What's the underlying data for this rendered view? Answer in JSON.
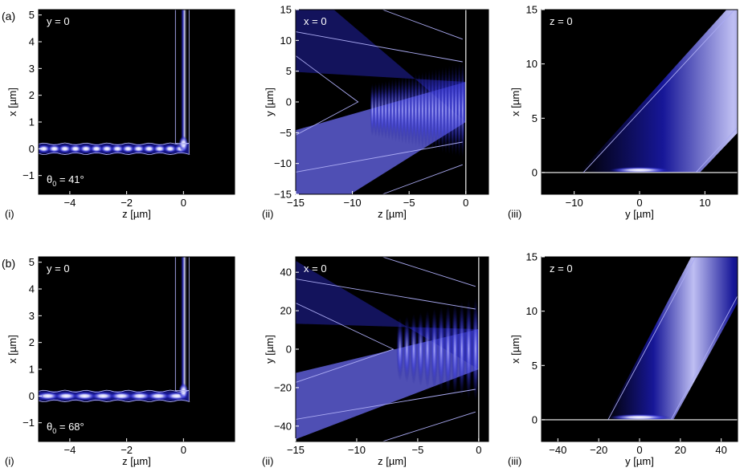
{
  "row_labels": [
    "(a)",
    "(b)"
  ],
  "colors": {
    "background": "#000000",
    "intensity_low": "#000000",
    "intensity_mid": "#2a2cd8",
    "intensity_high": "#f2f2ff",
    "contour": "#aaaaf2",
    "interface_line": "#d0d0d0"
  },
  "colormap": "black-blue-white",
  "chart_data": [
    {
      "type": "heatmap",
      "row": "(a)",
      "panel_label": "(i)",
      "title": "y = 0",
      "annotation": "θ0 = 41°",
      "annotation_base": "θ",
      "annotation_sub": "0",
      "annotation_rest": " = 41°",
      "xlabel": "z [µm]",
      "ylabel": "x [µm]",
      "xlim": [
        -5.1,
        1.8
      ],
      "ylim": [
        -1.7,
        5.2
      ],
      "xticks": [
        -4,
        -2,
        0
      ],
      "yticks": [
        -1,
        0,
        1,
        2,
        3,
        4,
        5
      ],
      "tick_labels": {
        "x": [
          "−4",
          "−2",
          "0"
        ],
        "y": [
          "−1",
          "0",
          "1",
          "2",
          "3",
          "4",
          "5"
        ]
      },
      "features": {
        "waveguide_z": [
          -5.1,
          0.2
        ],
        "waveguide_x": 0,
        "vertical_guide_z": 0,
        "vertical_guide_x": [
          0,
          5.2
        ],
        "peaks": 14
      }
    },
    {
      "type": "heatmap",
      "row": "(a)",
      "panel_label": "(ii)",
      "title": "x = 0",
      "xlabel": "z [µm]",
      "ylabel": "y [µm]",
      "xlim": [
        -15,
        2
      ],
      "ylim": [
        -15,
        15
      ],
      "xticks": [
        -15,
        -10,
        -5,
        0
      ],
      "yticks": [
        -15,
        -10,
        -5,
        0,
        5,
        10,
        15
      ],
      "tick_labels": {
        "x": [
          "−15",
          "−10",
          "−5",
          "0"
        ],
        "y": [
          "−15",
          "−10",
          "−5",
          "0",
          "5",
          "10",
          "15"
        ]
      },
      "features": {
        "interface_z": 0,
        "beam_angle_deg": 41,
        "fringes": 28
      }
    },
    {
      "type": "heatmap",
      "row": "(a)",
      "panel_label": "(iii)",
      "title": "z = 0",
      "xlabel": "y [µm]",
      "ylabel": "x [µm]",
      "xlim": [
        -15,
        15
      ],
      "ylim": [
        -2,
        15
      ],
      "xticks": [
        -10,
        0,
        10
      ],
      "yticks": [
        0,
        5,
        10,
        15
      ],
      "tick_labels": {
        "x": [
          "−10",
          "0",
          "10"
        ],
        "y": [
          "0",
          "5",
          "10",
          "15"
        ]
      },
      "features": {
        "interface_x": 0,
        "beam_angle_deg": 41
      }
    },
    {
      "type": "heatmap",
      "row": "(b)",
      "panel_label": "(i)",
      "title": "y = 0",
      "annotation": "θ0 = 68°",
      "annotation_base": "θ",
      "annotation_sub": "0",
      "annotation_rest": " = 68°",
      "xlabel": "z [µm]",
      "ylabel": "x [µm]",
      "xlim": [
        -5.1,
        1.8
      ],
      "ylim": [
        -1.7,
        5.2
      ],
      "xticks": [
        -4,
        -2,
        0
      ],
      "yticks": [
        -1,
        0,
        1,
        2,
        3,
        4,
        5
      ],
      "tick_labels": {
        "x": [
          "−4",
          "−2",
          "0"
        ],
        "y": [
          "−1",
          "0",
          "1",
          "2",
          "3",
          "4",
          "5"
        ]
      },
      "features": {
        "waveguide_z": [
          -5.1,
          0.2
        ],
        "waveguide_x": 0,
        "vertical_guide_z": 0,
        "vertical_guide_x": [
          0,
          5.2
        ],
        "peaks": 8
      }
    },
    {
      "type": "heatmap",
      "row": "(b)",
      "panel_label": "(ii)",
      "title": "x = 0",
      "xlabel": "z [µm]",
      "ylabel": "y [µm]",
      "xlim": [
        -15,
        0.8
      ],
      "ylim": [
        -48,
        48
      ],
      "xticks": [
        -15,
        -10,
        -5,
        0
      ],
      "yticks": [
        -40,
        -20,
        0,
        20,
        40
      ],
      "tick_labels": {
        "x": [
          "−15",
          "−10",
          "−5",
          "0"
        ],
        "y": [
          "−40",
          "−20",
          "0",
          "20",
          "40"
        ]
      },
      "features": {
        "interface_z": 0,
        "beam_angle_deg": 68,
        "fringes": 12
      }
    },
    {
      "type": "heatmap",
      "row": "(b)",
      "panel_label": "(iii)",
      "title": "z = 0",
      "xlabel": "y [µm]",
      "ylabel": "x [µm]",
      "xlim": [
        -48,
        48
      ],
      "ylim": [
        -2,
        15
      ],
      "xticks": [
        -40,
        -20,
        0,
        20,
        40
      ],
      "yticks": [
        0,
        5,
        10,
        15
      ],
      "tick_labels": {
        "x": [
          "−40",
          "−20",
          "0",
          "20",
          "40"
        ],
        "y": [
          "0",
          "5",
          "10",
          "15"
        ]
      },
      "features": {
        "interface_x": 0,
        "beam_angle_deg": 68
      }
    }
  ]
}
